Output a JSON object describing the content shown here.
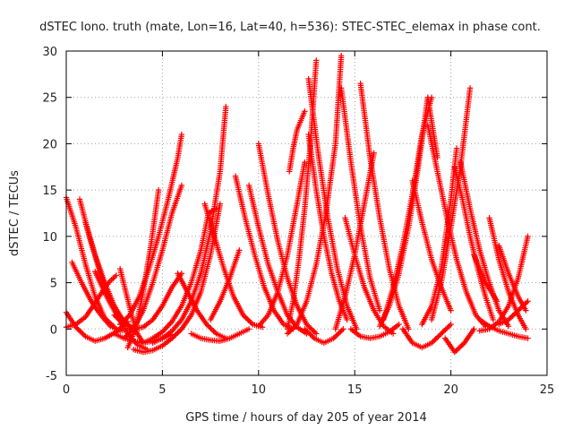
{
  "chart_data": {
    "type": "scatter",
    "title": "dSTEC Iono. truth (mate, Lon=16, Lat=40, h=536): STEC-STEC_elemax in phase cont.",
    "xlabel": "GPS time / hours of day 205 of year 2014",
    "ylabel": "dSTEC  / TECUs",
    "xlim": [
      0,
      25
    ],
    "ylim": [
      -5,
      30
    ],
    "xticks": [
      "0",
      "5",
      "10",
      "15",
      "20",
      "25"
    ],
    "yticks": [
      "-5",
      "0",
      "5",
      "10",
      "15",
      "20",
      "25",
      "30"
    ],
    "grid": true,
    "marker": "plus",
    "color": "#ff0000",
    "series": [
      {
        "x": [
          0.0,
          0.5,
          1.0,
          1.5,
          2.0,
          2.5
        ],
        "y": [
          14.2,
          11.0,
          7.0,
          3.5,
          1.2,
          0.2
        ]
      },
      {
        "x": [
          0.0,
          0.5,
          1.0,
          1.5,
          2.0,
          2.6,
          3.2
        ],
        "y": [
          1.8,
          0.2,
          -0.8,
          -1.3,
          -1.0,
          -0.3,
          0.8
        ]
      },
      {
        "x": [
          0.3,
          0.8,
          1.3,
          1.8,
          2.3,
          2.8,
          3.3
        ],
        "y": [
          7.2,
          5.0,
          3.0,
          1.5,
          0.3,
          -0.2,
          0.0
        ]
      },
      {
        "x": [
          0.7,
          1.2,
          1.7,
          2.2,
          2.7,
          3.2
        ],
        "y": [
          14.0,
          10.0,
          6.5,
          3.5,
          1.5,
          0.5
        ]
      },
      {
        "x": [
          1.0,
          1.5,
          2.0,
          2.5,
          3.0,
          3.5
        ],
        "y": [
          11.5,
          8.0,
          5.0,
          2.5,
          0.8,
          0.0
        ]
      },
      {
        "x": [
          0.0,
          0.5,
          1.0,
          1.4,
          1.8,
          2.2,
          2.6
        ],
        "y": [
          0.2,
          0.5,
          1.3,
          2.5,
          3.8,
          5.0,
          5.8
        ]
      },
      {
        "x": [
          1.5,
          2.1,
          2.7,
          3.2,
          3.7,
          4.2
        ],
        "y": [
          6.2,
          3.5,
          1.2,
          -0.5,
          -1.7,
          -2.2
        ]
      },
      {
        "x": [
          2.5,
          3.0,
          3.5,
          4.0,
          4.5,
          5.0,
          5.5
        ],
        "y": [
          -0.5,
          -1.0,
          -1.3,
          -1.5,
          -1.3,
          -1.0,
          -0.6
        ]
      },
      {
        "x": [
          2.5,
          3.0,
          3.5,
          4.0,
          4.5,
          5.0,
          5.5,
          6.0
        ],
        "y": [
          1.5,
          0.5,
          0.0,
          0.2,
          1.0,
          2.5,
          4.5,
          6.0
        ]
      },
      {
        "x": [
          2.8,
          3.3,
          3.8,
          4.3,
          4.8,
          5.3,
          5.8,
          6.0
        ],
        "y": [
          0.5,
          1.5,
          3.5,
          6.5,
          10.0,
          14.0,
          18.5,
          21.0
        ]
      },
      {
        "x": [
          3.0,
          3.5,
          4.0,
          4.5,
          5.0,
          5.5,
          6.0
        ],
        "y": [
          -1.0,
          0.0,
          2.0,
          5.0,
          8.5,
          12.5,
          15.5
        ]
      },
      {
        "x": [
          3.2,
          3.6,
          4.0,
          4.4,
          4.8
        ],
        "y": [
          -2.0,
          0.0,
          4.0,
          9.0,
          15.0
        ]
      },
      {
        "x": [
          2.8,
          3.1,
          3.4,
          3.7,
          4.0
        ],
        "y": [
          6.5,
          4.0,
          1.5,
          -0.5,
          -1.5
        ]
      },
      {
        "x": [
          3.5,
          4.0,
          4.5,
          5.0,
          5.5,
          6.0,
          6.5,
          7.0,
          7.5,
          8.0
        ],
        "y": [
          -2.2,
          -2.5,
          -2.3,
          -1.8,
          -1.0,
          0.0,
          1.5,
          4.0,
          8.0,
          13.5
        ]
      },
      {
        "x": [
          4.5,
          5.0,
          5.5,
          6.0,
          6.5,
          7.0,
          7.5,
          8.0,
          8.3
        ],
        "y": [
          -1.5,
          -1.0,
          -0.2,
          1.0,
          3.0,
          6.0,
          10.5,
          17.0,
          24.0
        ]
      },
      {
        "x": [
          5.8,
          6.3,
          6.8,
          7.3,
          7.8,
          8.3
        ],
        "y": [
          6.0,
          4.0,
          2.0,
          0.5,
          -0.5,
          -1.0
        ]
      },
      {
        "x": [
          4.0,
          4.5,
          5.0,
          5.5,
          6.0,
          6.5,
          7.0,
          7.4,
          7.8
        ],
        "y": [
          -1.5,
          -1.0,
          -0.3,
          0.8,
          2.5,
          5.0,
          8.5,
          12.5,
          13.0
        ]
      },
      {
        "x": [
          7.2,
          7.7,
          8.2,
          8.7,
          9.2,
          9.7,
          10.2
        ],
        "y": [
          13.5,
          10.0,
          6.5,
          3.5,
          1.5,
          0.5,
          0.2
        ]
      },
      {
        "x": [
          6.5,
          7.0,
          7.5,
          8.0,
          8.5,
          9.0,
          9.5
        ],
        "y": [
          -0.5,
          -1.0,
          -1.2,
          -1.3,
          -1.0,
          -0.5,
          0.0
        ]
      },
      {
        "x": [
          7.5,
          8.0,
          8.5,
          9.0
        ],
        "y": [
          1.0,
          3.0,
          5.5,
          8.5
        ]
      },
      {
        "x": [
          8.8,
          9.3,
          9.8,
          10.3,
          10.8,
          11.3,
          11.8
        ],
        "y": [
          16.5,
          12.0,
          8.0,
          4.5,
          2.0,
          0.5,
          0.0
        ]
      },
      {
        "x": [
          9.5,
          10.0,
          10.5,
          11.0,
          11.5,
          12.0,
          12.5
        ],
        "y": [
          15.5,
          11.0,
          7.0,
          4.0,
          1.5,
          0.2,
          -0.5
        ]
      },
      {
        "x": [
          10.0,
          10.5,
          11.0,
          11.5,
          12.0,
          12.5,
          13.0
        ],
        "y": [
          20.0,
          14.5,
          9.5,
          5.5,
          2.5,
          0.5,
          -0.5
        ]
      },
      {
        "x": [
          10.0,
          10.5,
          11.0,
          11.5,
          12.0,
          12.4
        ],
        "y": [
          0.3,
          1.5,
          4.0,
          8.0,
          13.5,
          18.0
        ]
      },
      {
        "x": [
          11.5,
          11.8,
          12.1,
          12.4,
          12.7,
          13.0
        ],
        "y": [
          0.0,
          3.0,
          7.5,
          13.0,
          20.0,
          29.0
        ]
      },
      {
        "x": [
          11.5,
          12.0,
          12.5,
          13.0,
          13.5,
          14.0,
          14.3
        ],
        "y": [
          -0.5,
          0.5,
          3.0,
          7.0,
          12.5,
          20.0,
          29.5
        ]
      },
      {
        "x": [
          11.6,
          11.8,
          12.0,
          12.2,
          12.4
        ],
        "y": [
          17.0,
          19.5,
          21.5,
          22.5,
          23.5
        ]
      },
      {
        "x": [
          12.6,
          13.1,
          13.6,
          14.1,
          14.6,
          15.1
        ],
        "y": [
          27.0,
          19.0,
          12.0,
          6.5,
          2.5,
          0.0
        ]
      },
      {
        "x": [
          12.6,
          13.0,
          13.4,
          13.8,
          14.2,
          14.6
        ],
        "y": [
          21.0,
          15.0,
          10.0,
          6.0,
          3.0,
          1.0
        ]
      },
      {
        "x": [
          12.4,
          12.9,
          13.4,
          13.9,
          14.4
        ],
        "y": [
          0.0,
          -1.0,
          -1.5,
          -1.0,
          0.0
        ]
      },
      {
        "x": [
          14.3,
          14.8,
          15.3,
          15.8,
          16.3
        ],
        "y": [
          26.0,
          18.0,
          11.0,
          5.5,
          2.0
        ]
      },
      {
        "x": [
          14.5,
          15.0,
          15.5,
          16.0,
          16.5,
          17.0
        ],
        "y": [
          12.0,
          8.0,
          4.5,
          2.0,
          0.3,
          -0.5
        ]
      },
      {
        "x": [
          15.3,
          15.8,
          16.3,
          16.8,
          17.3,
          17.8
        ],
        "y": [
          26.5,
          18.5,
          12.0,
          6.5,
          2.5,
          0.0
        ]
      },
      {
        "x": [
          14.0,
          14.5,
          15.0,
          15.5,
          16.0
        ],
        "y": [
          0.0,
          3.5,
          8.0,
          13.5,
          19.0
        ]
      },
      {
        "x": [
          14.8,
          15.3,
          15.8,
          16.3,
          16.8,
          17.3
        ],
        "y": [
          0.0,
          -0.8,
          -1.0,
          -0.8,
          -0.3,
          0.5
        ]
      },
      {
        "x": [
          16.3,
          16.8,
          17.3,
          17.8,
          18.3,
          18.8,
          19.3
        ],
        "y": [
          0.3,
          2.5,
          6.0,
          11.0,
          17.5,
          25.0,
          18.5
        ]
      },
      {
        "x": [
          16.5,
          17.0,
          17.5,
          18.0,
          18.5,
          19.0
        ],
        "y": [
          1.0,
          4.5,
          9.0,
          14.5,
          21.0,
          25.0
        ]
      },
      {
        "x": [
          17.5,
          18.0,
          18.5,
          19.0,
          19.5,
          20.0
        ],
        "y": [
          0.0,
          -1.5,
          -2.0,
          -1.5,
          -0.5,
          0.5
        ]
      },
      {
        "x": [
          18.0,
          18.5,
          19.0,
          19.5,
          20.0
        ],
        "y": [
          16.0,
          11.5,
          7.5,
          4.5,
          2.0
        ]
      },
      {
        "x": [
          18.8,
          19.3,
          19.8,
          20.3,
          20.8,
          21.3,
          21.8
        ],
        "y": [
          22.0,
          17.0,
          12.0,
          7.5,
          4.0,
          1.5,
          0.3
        ]
      },
      {
        "x": [
          18.5,
          19.0,
          19.5,
          20.0,
          20.3
        ],
        "y": [
          0.5,
          2.5,
          6.5,
          14.0,
          19.5
        ]
      },
      {
        "x": [
          19.0,
          19.5,
          20.0,
          20.5,
          21.0
        ],
        "y": [
          1.0,
          5.0,
          11.0,
          17.5,
          26.0
        ]
      },
      {
        "x": [
          20.2,
          20.6,
          21.0,
          21.4,
          21.8,
          22.2
        ],
        "y": [
          17.5,
          14.0,
          10.0,
          6.5,
          3.5,
          1.0
        ]
      },
      {
        "x": [
          19.7,
          20.2,
          20.7,
          21.2
        ],
        "y": [
          -1.0,
          -2.5,
          -1.5,
          0.0
        ]
      },
      {
        "x": [
          20.5,
          21.0,
          21.5,
          22.0,
          22.5,
          23.0
        ],
        "y": [
          18.0,
          13.0,
          8.5,
          5.0,
          2.0,
          0.3
        ]
      },
      {
        "x": [
          21.2,
          21.5,
          21.8,
          22.1,
          22.4
        ],
        "y": [
          8.0,
          6.5,
          5.0,
          4.0,
          3.0
        ]
      },
      {
        "x": [
          22.0,
          22.5,
          23.0,
          23.5,
          23.9
        ],
        "y": [
          12.0,
          7.5,
          4.0,
          1.5,
          0.0
        ]
      },
      {
        "x": [
          22.5,
          23.0,
          23.5,
          23.9
        ],
        "y": [
          9.0,
          6.0,
          3.5,
          2.0
        ]
      },
      {
        "x": [
          21.5,
          22.0,
          22.5,
          23.0,
          23.5,
          24.0
        ],
        "y": [
          -0.2,
          0.0,
          0.8,
          2.5,
          5.5,
          10.0
        ]
      },
      {
        "x": [
          21.5,
          22.0,
          22.5,
          23.0,
          23.5,
          24.0
        ],
        "y": [
          1.0,
          0.3,
          -0.2,
          -0.5,
          -0.8,
          -1.0
        ]
      },
      {
        "x": [
          22.5,
          23.0,
          23.5,
          24.0
        ],
        "y": [
          0.5,
          1.0,
          2.0,
          3.0
        ]
      }
    ]
  }
}
